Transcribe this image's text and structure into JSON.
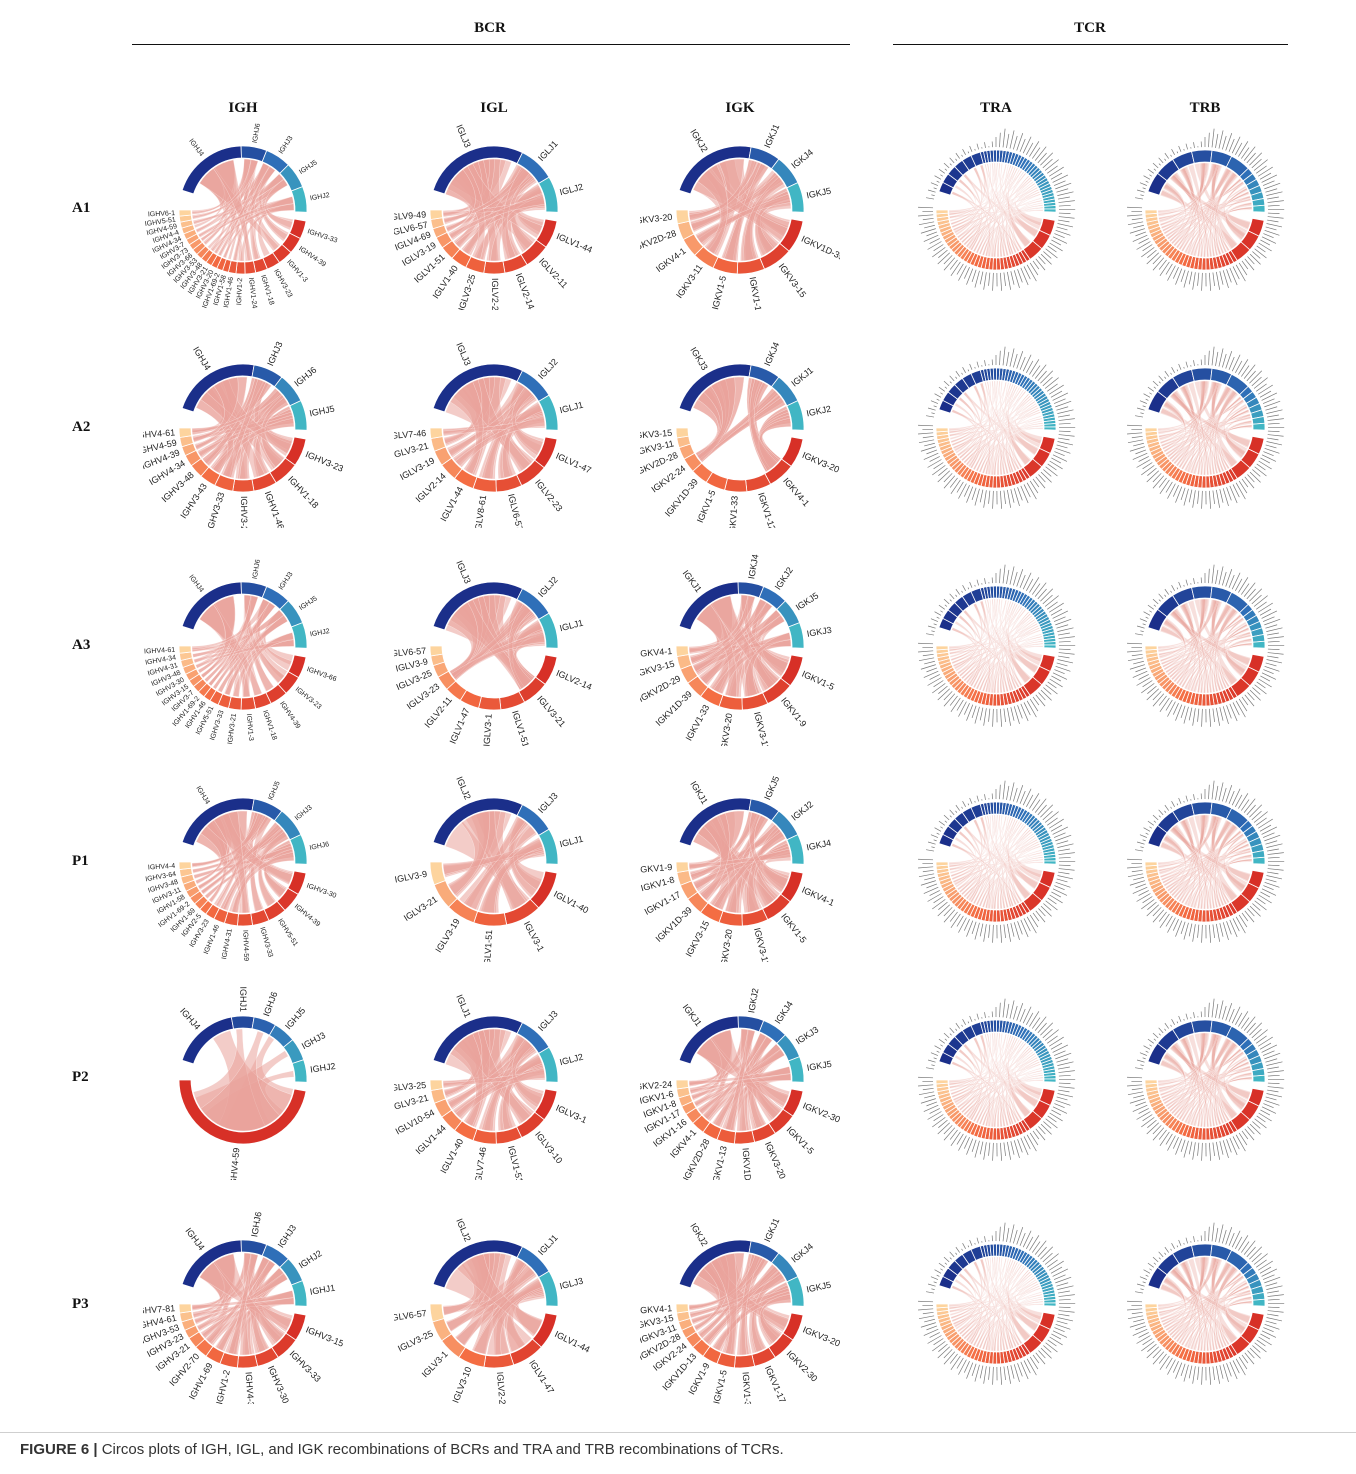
{
  "figure": {
    "group_bcr": "BCR",
    "group_tcr": "TCR",
    "columns": [
      "IGH",
      "IGL",
      "IGK",
      "TRA",
      "TRB"
    ],
    "rows": [
      "A1",
      "A2",
      "A3",
      "P1",
      "P2",
      "P3"
    ],
    "caption_label": "FIGURE 6 |",
    "caption_text": " Circos plots of IGH, IGL, and IGK recombinations of BCRs and TRA and TRB recombinations of TCRs."
  },
  "colors": {
    "j_dark": "#1b2f8a",
    "j_mid": "#2f6fb8",
    "j_light": "#41b6c4",
    "v_dark": "#d73027",
    "v_mid": "#f46d43",
    "v_light": "#fdd49e",
    "ribbon": "#e9a39a"
  },
  "plots": {
    "A1": {
      "IGH": {
        "j": [
          "IGHJ4",
          "IGHJ6",
          "IGHJ3",
          "IGHJ5",
          "IGHJ2"
        ],
        "v": [
          "IGHV3-33",
          "IGHV4-39",
          "IGHV1-3",
          "IGHV3-23",
          "IGHV1-18",
          "IGHV1-24",
          "IGHV1-2",
          "IGHV1-46",
          "IGHV1-58",
          "IGHV1-69-2",
          "IGHV3-20",
          "IGHV3-21",
          "IGHV3-48",
          "IGHV3-53",
          "IGHV3-66",
          "IGHV3-73",
          "IGHV3-7",
          "IGHV4-34",
          "IGHV4-4",
          "IGHV4-59",
          "IGHV5-51",
          "IGHV6-1"
        ]
      },
      "IGL": {
        "j": [
          "IGLJ3",
          "IGLJ1",
          "IGLJ2"
        ],
        "v": [
          "IGLV1-44",
          "IGLV2-11",
          "IGLV2-14",
          "IGLV2-23",
          "IGLV3-25",
          "IGLV1-40",
          "IGLV1-51",
          "IGLV3-19",
          "IGLV4-69",
          "IGLV6-57",
          "IGLV9-49"
        ]
      },
      "IGK": {
        "j": [
          "IGKJ2",
          "IGKJ1",
          "IGKJ4",
          "IGKJ5"
        ],
        "v": [
          "IGKV1D-39",
          "IGKV3-15",
          "IGKV1-17",
          "IGKV1-5",
          "IGKV3-11",
          "IGKV4-1",
          "IGKV2D-28",
          "IGKV3-20"
        ]
      }
    },
    "A2": {
      "IGH": {
        "j": [
          "IGHJ4",
          "IGHJ3",
          "IGHJ6",
          "IGHJ5"
        ],
        "v": [
          "IGHV3-23",
          "IGHV1-18",
          "IGHV1-46",
          "IGHV3-20",
          "IGHV3-33",
          "IGHV3-43",
          "IGHV3-48",
          "IGHV4-34",
          "IGHV4-39",
          "IGHV4-59",
          "IGHV4-61"
        ]
      },
      "IGL": {
        "j": [
          "IGLJ3",
          "IGLJ2",
          "IGLJ1"
        ],
        "v": [
          "IGLV1-47",
          "IGLV2-23",
          "IGLV6-57",
          "IGLV8-61",
          "IGLV1-44",
          "IGLV2-14",
          "IGLV3-19",
          "IGLV3-21",
          "IGLV7-46"
        ]
      },
      "IGK": {
        "j": [
          "IGKJ3",
          "IGKJ4",
          "IGKJ1",
          "IGKJ2"
        ],
        "v": [
          "IGKV3-20",
          "IGKV4-1",
          "IGKV1-12",
          "IGKV1-33",
          "IGKV1-5",
          "IGKV1D-39",
          "IGKV2-24",
          "IGKV2D-28",
          "IGKV3-11",
          "IGKV3-15"
        ]
      }
    },
    "A3": {
      "IGH": {
        "j": [
          "IGHJ4",
          "IGHJ6",
          "IGHJ3",
          "IGHJ5",
          "IGHJ2"
        ],
        "v": [
          "IGHV3-66",
          "IGHV3-23",
          "IGHV4-39",
          "IGHV1-18",
          "IGHV1-3",
          "IGHV3-21",
          "IGHV3-33",
          "IGHV5-51",
          "IGHV1-46",
          "IGHV1-69-2",
          "IGHV3-7",
          "IGHV3-15",
          "IGHV3-30",
          "IGHV3-48",
          "IGHV4-31",
          "IGHV4-34",
          "IGHV4-61"
        ]
      },
      "IGL": {
        "j": [
          "IGLJ3",
          "IGLJ2",
          "IGLJ1"
        ],
        "v": [
          "IGLV2-14",
          "IGLV3-21",
          "IGLV1-51",
          "IGLV3-1",
          "IGLV1-47",
          "IGLV2-11",
          "IGLV3-23",
          "IGLV3-25",
          "IGLV3-9",
          "IGLV6-57"
        ]
      },
      "IGK": {
        "j": [
          "IGKJ1",
          "IGKJ4",
          "IGKJ2",
          "IGKJ5",
          "IGKJ3"
        ],
        "v": [
          "IGKV1-5",
          "IGKV1-9",
          "IGKV3-11",
          "IGKV3-20",
          "IGKV1-33",
          "IGKV1D-39",
          "IGKV2D-29",
          "IGKV3-15",
          "IGKV4-1"
        ]
      }
    },
    "P1": {
      "IGH": {
        "j": [
          "IGHJ4",
          "IGHJ5",
          "IGHJ3",
          "IGHJ6"
        ],
        "v": [
          "IGHV3-30",
          "IGHV4-39",
          "IGHV5-51",
          "IGHV3-33",
          "IGHV4-59",
          "IGHV4-31",
          "IGHV1-46",
          "IGHV3-23",
          "IGHV2-5",
          "IGHV1-69",
          "IGHV1-69-2",
          "IGHV1-58",
          "IGHV3-11",
          "IGHV3-48",
          "IGHV3-64",
          "IGHV4-4"
        ]
      },
      "IGL": {
        "j": [
          "IGLJ2",
          "IGLJ3",
          "IGLJ1"
        ],
        "v": [
          "IGLV1-40",
          "IGLV3-1",
          "IGLV1-51",
          "IGLV3-19",
          "IGLV3-21",
          "IGLV3-9"
        ]
      },
      "IGK": {
        "j": [
          "IGKJ1",
          "IGKJ5",
          "IGKJ2",
          "IGKJ4"
        ],
        "v": [
          "IGKV4-1",
          "IGKV1-5",
          "IGKV3-11",
          "IGKV3-20",
          "IGKV3-15",
          "IGKV1D-39",
          "IGKV1-17",
          "IGKV1-8",
          "IGKV1-9"
        ]
      }
    },
    "P2": {
      "IGH": {
        "j": [
          "IGHJ4",
          "IGHJ1",
          "IGHJ6",
          "IGHJ5",
          "IGHJ3",
          "IGHJ2"
        ],
        "v": [
          "IGHV4-59"
        ]
      },
      "IGL": {
        "j": [
          "IGLJ1",
          "IGLJ3",
          "IGLJ2"
        ],
        "v": [
          "IGLV3-1",
          "IGLV3-10",
          "IGLV1-51",
          "IGLV7-46",
          "IGLV1-40",
          "IGLV1-44",
          "IGLV10-54",
          "IGLV3-21",
          "IGLV3-25"
        ]
      },
      "IGK": {
        "j": [
          "IGKJ1",
          "IGKJ2",
          "IGKJ4",
          "IGKJ3",
          "IGKJ5"
        ],
        "v": [
          "IGKV2-30",
          "IGKV1-5",
          "IGKV3-20",
          "IGKV1D-39",
          "IGKV1-13",
          "IGKV2D-28",
          "IGKV4-1",
          "IGKV1-16",
          "IGKV1-17",
          "IGKV1-8",
          "IGKV1-6",
          "IGKV2-24"
        ]
      }
    },
    "P3": {
      "IGH": {
        "j": [
          "IGHJ4",
          "IGHJ6",
          "IGHJ3",
          "IGHJ2",
          "IGHJ1"
        ],
        "v": [
          "IGHV3-15",
          "IGHV3-33",
          "IGHV3-30",
          "IGHV4-39",
          "IGHV1-2",
          "IGHV1-69",
          "IGHV2-70",
          "IGHV3-21",
          "IGHV3-23",
          "IGHV3-53",
          "IGHV4-61",
          "IGHV7-81"
        ]
      },
      "IGL": {
        "j": [
          "IGLJ2",
          "IGLJ1",
          "IGLJ3"
        ],
        "v": [
          "IGLV1-44",
          "IGLV1-47",
          "IGLV2-23",
          "IGLV3-10",
          "IGLV3-1",
          "IGLV3-25",
          "IGLV6-57"
        ]
      },
      "IGK": {
        "j": [
          "IGKJ2",
          "IGKJ1",
          "IGKJ4",
          "IGKJ5"
        ],
        "v": [
          "IGKV3-20",
          "IGKV2-30",
          "IGKV1-17",
          "IGKV1-33",
          "IGKV1-5",
          "IGKV1-9",
          "IGKV1D-13",
          "IGKV2-24",
          "IGKV2D-28",
          "IGKV3-11",
          "IGKV3-15",
          "IGKV4-1"
        ]
      }
    }
  }
}
